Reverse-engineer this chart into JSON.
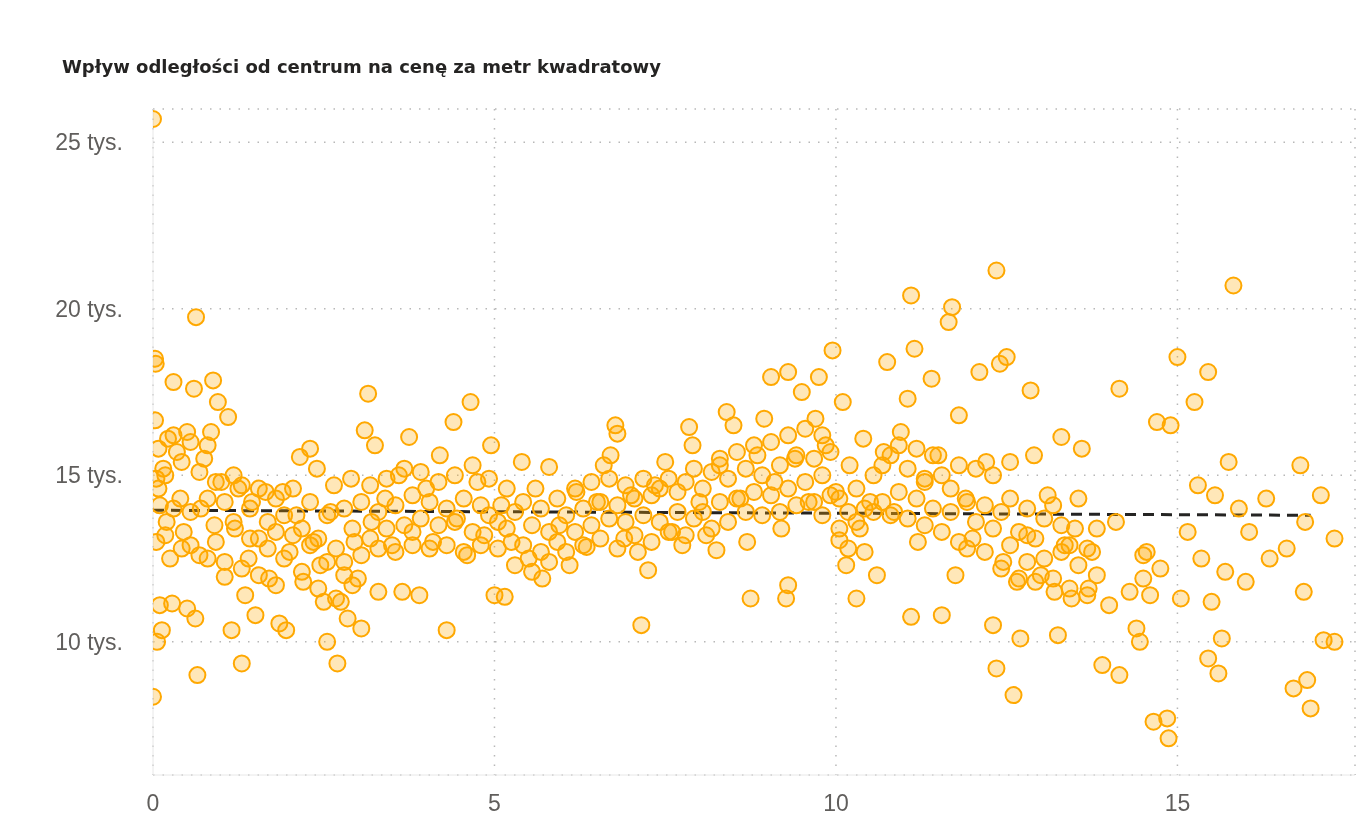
{
  "chart_data": {
    "type": "scatter",
    "title": "Wpływ odległości od centrum na cenę za metr kwadratowy",
    "xlim": [
      0,
      17.6
    ],
    "xticks": [
      0,
      5,
      10,
      15
    ],
    "ylim": [
      6,
      26
    ],
    "yticks": [
      {
        "value": 10,
        "label": "10 tys."
      },
      {
        "value": 15,
        "label": "15 tys."
      },
      {
        "value": 20,
        "label": "20 tys."
      },
      {
        "value": 25,
        "label": "25 tys."
      }
    ],
    "grid": true,
    "marker": "circle",
    "series": [
      {
        "color": "#ffa800",
        "x": [
          0,
          0,
          0.03,
          0.04,
          0.03,
          0.05,
          0.06,
          0.1,
          0.13,
          0.05,
          0.1,
          0.15,
          0.2,
          0.22,
          0.25,
          0.28,
          0.3,
          0.35,
          0.4,
          0.45,
          0.5,
          0.5,
          0.55,
          0.6,
          0.62,
          0.63,
          0.65,
          0.7,
          0.75,
          0.8,
          0.85,
          0.88,
          0.9,
          0.95,
          1.0,
          1.05,
          1.1,
          1.15,
          1.2,
          1.25,
          1.3,
          1.35,
          1.4,
          1.45,
          1.5,
          1.55,
          1.65,
          1.7,
          1.8,
          1.85,
          1.9,
          1.95,
          2.0,
          2.1,
          2.15,
          2.2,
          2.3,
          2.35,
          2.4,
          2.45,
          2.5,
          2.55,
          2.6,
          2.65,
          2.7,
          2.75,
          2.8,
          2.85,
          2.9,
          2.95,
          3.0,
          3.05,
          3.1,
          3.15,
          3.2,
          3.25,
          3.3,
          3.4,
          3.5,
          3.6,
          3.65,
          3.75,
          3.8,
          3.9,
          4.0,
          4.1,
          4.2,
          4.3,
          4.4,
          4.45,
          4.6,
          4.65,
          4.75,
          4.85,
          4.95,
          5.0,
          5.1,
          5.15,
          5.25,
          5.4,
          5.5,
          5.6,
          5.7,
          5.8,
          5.95,
          6.1,
          6.2,
          6.35,
          6.5,
          6.6,
          6.7,
          6.77,
          6.8,
          6.9,
          7.0,
          7.1,
          7.15,
          7.25,
          7.35,
          7.5,
          7.6,
          7.75,
          7.85,
          7.9,
          8.0,
          8.1,
          8.25,
          8.3,
          8.4,
          8.5,
          8.6,
          8.7,
          8.75,
          8.85,
          8.95,
          9.05,
          9.1,
          9.2,
          9.27,
          9.3,
          9.3,
          9.4,
          9.5,
          9.6,
          9.7,
          9.75,
          9.8,
          9.85,
          9.95,
          10.0,
          10.05,
          10.1,
          10.15,
          10.2,
          10.3,
          10.35,
          10.4,
          10.5,
          10.6,
          10.7,
          10.75,
          10.85,
          10.95,
          11.05,
          11.1,
          11.1,
          11.15,
          11.2,
          11.3,
          11.4,
          11.5,
          11.55,
          11.65,
          11.7,
          11.75,
          11.8,
          11.9,
          12.0,
          12.1,
          12.2,
          12.3,
          12.35,
          12.35,
          12.4,
          12.45,
          12.5,
          12.55,
          12.6,
          12.65,
          12.7,
          12.8,
          12.85,
          12.9,
          13.0,
          13.1,
          13.2,
          13.25,
          13.3,
          13.35,
          13.45,
          13.5,
          13.6,
          13.7,
          13.75,
          13.9,
          14.0,
          14.1,
          14.15,
          14.15,
          14.3,
          14.4,
          14.45,
          14.55,
          14.6,
          14.65,
          14.7,
          14.75,
          14.85,
          14.87,
          14.9,
          15.0,
          15.05,
          15.15,
          15.25,
          15.3,
          15.35,
          15.45,
          15.45,
          15.5,
          15.55,
          15.6,
          15.65,
          15.7,
          15.75,
          15.82,
          15.9,
          16.0,
          16.05,
          16.3,
          16.35,
          16.6,
          16.7,
          16.8,
          16.85,
          16.87,
          16.9,
          16.95,
          17.1,
          17.14,
          17.3,
          17.3,
          0.08,
          0.08,
          0.18,
          0.18,
          0.3,
          0.3,
          0.42,
          0.42,
          0.55,
          0.55,
          0.68,
          0.68,
          0.8,
          0.8,
          0.92,
          0.92,
          1.05,
          1.05,
          1.18,
          1.18,
          1.3,
          1.3,
          1.42,
          1.42,
          1.55,
          1.55,
          1.68,
          1.68,
          1.8,
          1.8,
          1.92,
          1.92,
          2.05,
          2.05,
          2.18,
          2.18,
          2.3,
          2.3,
          2.42,
          2.42,
          2.55,
          2.55,
          2.68,
          2.68,
          2.8,
          2.8,
          2.92,
          2.92,
          3.05,
          3.05,
          3.18,
          3.18,
          3.3,
          3.3,
          3.42,
          3.42,
          3.55,
          3.55,
          3.68,
          3.68,
          3.8,
          3.8,
          3.92,
          3.92,
          4.05,
          4.05,
          4.18,
          4.18,
          4.3,
          4.3,
          4.42,
          4.42,
          4.55,
          4.55,
          4.68,
          4.68,
          4.8,
          4.8,
          4.92,
          4.92,
          5.05,
          5.05,
          5.18,
          5.18,
          5.3,
          5.3,
          5.42,
          5.42,
          5.55,
          5.55,
          5.68,
          5.68,
          5.8,
          5.8,
          5.92,
          5.92,
          6.05,
          6.05,
          6.18,
          6.18,
          6.3,
          6.3,
          6.42,
          6.42,
          6.55,
          6.55,
          6.68,
          6.68,
          6.8,
          6.8,
          6.92,
          6.92,
          7.05,
          7.05,
          7.18,
          7.18,
          7.3,
          7.3,
          7.42,
          7.42,
          7.55,
          7.55,
          7.68,
          7.68,
          7.8,
          7.8,
          7.92,
          7.92,
          8.05,
          8.05,
          8.18,
          8.18,
          8.3,
          8.3,
          8.42,
          8.42,
          8.55,
          8.55,
          8.68,
          8.68,
          8.8,
          8.8,
          8.92,
          8.92,
          9.05,
          9.05,
          9.18,
          9.18,
          9.3,
          9.3,
          9.42,
          9.42,
          9.55,
          9.55,
          9.68,
          9.68,
          9.8,
          9.8,
          9.92,
          9.92,
          10.05,
          10.05,
          10.18,
          10.18,
          10.3,
          10.3,
          10.42,
          10.42,
          10.55,
          10.55,
          10.68,
          10.68,
          10.8,
          10.8,
          10.92,
          10.92,
          11.05,
          11.05,
          11.18,
          11.18,
          11.3,
          11.3,
          11.42,
          11.42,
          11.55,
          11.55,
          11.68,
          11.68,
          11.8,
          11.8,
          11.92,
          11.92,
          12.05,
          12.05,
          12.18,
          12.18,
          12.3,
          12.3,
          12.42,
          12.42,
          12.55,
          12.55,
          12.68,
          12.68,
          12.8,
          12.8,
          12.92,
          12.92,
          13.05,
          13.05,
          13.18,
          13.18,
          13.3,
          13.3,
          13.42,
          13.42,
          13.55,
          13.55,
          13.68,
          13.68,
          13.82,
          13.82,
          14.5,
          14.5
        ],
        "values": [
          25.7,
          8.35,
          18.5,
          18.35,
          16.65,
          14.9,
          10,
          11.1,
          10.35,
          13,
          14.1,
          15.2,
          13.6,
          16.1,
          12.5,
          11.15,
          17.8,
          15.7,
          14.3,
          13.3,
          16.3,
          11,
          12.9,
          17.6,
          10.7,
          19.75,
          9,
          14,
          15.5,
          12.5,
          16.3,
          17.85,
          13.5,
          17.2,
          14.8,
          11.95,
          16.75,
          10.35,
          13.4,
          14.6,
          9.35,
          11.4,
          12.5,
          14.2,
          10.8,
          13.1,
          14.5,
          11.9,
          13.3,
          10.55,
          14.5,
          10.35,
          12.7,
          13.8,
          15.55,
          11.8,
          15.8,
          13,
          15.2,
          12.3,
          11.2,
          10,
          13.9,
          14.7,
          9.35,
          11.2,
          12.4,
          10.7,
          14.9,
          13,
          11.9,
          10.4,
          16.35,
          17.45,
          13.6,
          15.9,
          11.5,
          14.3,
          12.9,
          15,
          11.5,
          16.15,
          13.3,
          11.4,
          14.6,
          13,
          15.6,
          10.35,
          16.6,
          13.7,
          12.6,
          17.2,
          14.8,
          13.2,
          15.9,
          11.4,
          14.1,
          11.35,
          13,
          15.4,
          12.5,
          14.6,
          11.9,
          15.25,
          13.5,
          12.3,
          14.5,
          12.85,
          14.2,
          15.3,
          15.6,
          16.5,
          16.25,
          13.1,
          14.4,
          12.7,
          10.5,
          12.15,
          14.7,
          15.4,
          13.3,
          12.9,
          16.45,
          15.9,
          14.2,
          13.2,
          12.75,
          15.3,
          16.9,
          16.5,
          14.3,
          13,
          11.3,
          15.6,
          16.7,
          17.95,
          14.8,
          13.4,
          11.3,
          11.7,
          18.1,
          15.5,
          17.5,
          14.2,
          16.7,
          17.95,
          13.8,
          15.9,
          18.75,
          14.5,
          13.05,
          17.2,
          12.3,
          15.3,
          11.3,
          13.4,
          16.1,
          14.2,
          12,
          15.7,
          18.4,
          13.9,
          16.3,
          17.3,
          20.4,
          10.75,
          18.8,
          13,
          14.8,
          17.9,
          15.6,
          10.8,
          19.6,
          20.05,
          12,
          16.8,
          14.3,
          13.1,
          18.1,
          15.4,
          10.5,
          21.15,
          9.2,
          18.35,
          12.4,
          18.55,
          15.4,
          8.4,
          11.8,
          10.1,
          13.2,
          17.55,
          15.6,
          12,
          14.4,
          11.5,
          10.2,
          16.15,
          12.9,
          11.3,
          13.4,
          15.8,
          11.6,
          12.7,
          9.3,
          11.1,
          13.6,
          9,
          17.6,
          11.5,
          10.4,
          10,
          12.7,
          11.4,
          7.6,
          16.6,
          12.2,
          7.7,
          7.1,
          16.5,
          18.55,
          11.3,
          13.3,
          17.2,
          14.7,
          12.5,
          18.1,
          9.5,
          11.2,
          14.4,
          9.05,
          10.1,
          12.1,
          15.4,
          20.7,
          14,
          11.8,
          13.3,
          14.3,
          12.5,
          12.8,
          8.6,
          15.3,
          11.5,
          13.6,
          8.85,
          8,
          14.4,
          10.05,
          10,
          13.1,
          14.6,
          15.8,
          13.2,
          15,
          14,
          16.2,
          12.8,
          15.4,
          13.9,
          16,
          12.6,
          15.1,
          14.3,
          15.9,
          13,
          14.8,
          12.4,
          14.2,
          13.6,
          15,
          12.2,
          14.7,
          13.1,
          14,
          12,
          14.6,
          12.8,
          13.6,
          11.7,
          14.3,
          12.5,
          13.8,
          13.2,
          14.6,
          12.1,
          13.4,
          12.9,
          14.2,
          11.6,
          13.1,
          12.4,
          13.8,
          11.3,
          12.8,
          12,
          14,
          11.7,
          13.4,
          12.6,
          14.2,
          13.1,
          14.7,
          12.8,
          13.9,
          13.4,
          14.9,
          12.7,
          14.1,
          13.5,
          15.2,
          12.9,
          14.4,
          13.7,
          15.1,
          12.8,
          14.2,
          13.5,
          14.8,
          12.9,
          14,
          13.6,
          15,
          12.7,
          14.3,
          13.3,
          15.3,
          12.9,
          14.1,
          13.8,
          14.9,
          12.8,
          13.6,
          13.4,
          14.6,
          12.3,
          13.9,
          12.9,
          14.2,
          12.1,
          13.5,
          12.7,
          14,
          12.4,
          13.3,
          13,
          14.3,
          12.7,
          13.8,
          13.3,
          14.6,
          12.9,
          14,
          13.5,
          14.8,
          13.1,
          14.2,
          13.7,
          14.9,
          12.8,
          14.1,
          13.6,
          14.7,
          13.2,
          14.3,
          13.8,
          14.9,
          13,
          14.4,
          13.6,
          14.6,
          13.3,
          14.9,
          13.9,
          14.5,
          13.2,
          14.8,
          13.7,
          15.2,
          13.9,
          14.6,
          13.4,
          15.1,
          14.2,
          15.5,
          13.6,
          14.9,
          14.3,
          15.7,
          13.9,
          15.2,
          14.5,
          15.9,
          13.8,
          15,
          14.4,
          16,
          13.9,
          15.3,
          14.6,
          16.2,
          14.1,
          15.6,
          14.8,
          16.4,
          14.2,
          15.5,
          15,
          16.2,
          14.4,
          15.7,
          13.4,
          14.3,
          12.8,
          13.9,
          13.6,
          14.6,
          12.7,
          14,
          13.9,
          15,
          14.2,
          15.3,
          13.8,
          15.6,
          14.5,
          15.9,
          13.7,
          15.2,
          14.3,
          15.8,
          13.5,
          14.9,
          14,
          15.6,
          13.3,
          15,
          13.9,
          14.6,
          13,
          15.3,
          12.8,
          14.2,
          13.6,
          15.2,
          12.7,
          14.1,
          13.4,
          15,
          12.2,
          13.9,
          12.9,
          14.3,
          11.9,
          13.3,
          12.4,
          14,
          11.8,
          13.1,
          12.5,
          13.7,
          11.9,
          14.1,
          12.7,
          13.5,
          11.6,
          12.9,
          12.3,
          14.3,
          11.4,
          12.8,
          12,
          13.4,
          11.9,
          12.6
        ]
      },
      {
        "type": "line",
        "color": "#252423",
        "line_style": "dashed",
        "marker": "none",
        "x": [
          0,
          16.95
        ],
        "values": [
          13.95,
          13.8
        ]
      }
    ]
  }
}
